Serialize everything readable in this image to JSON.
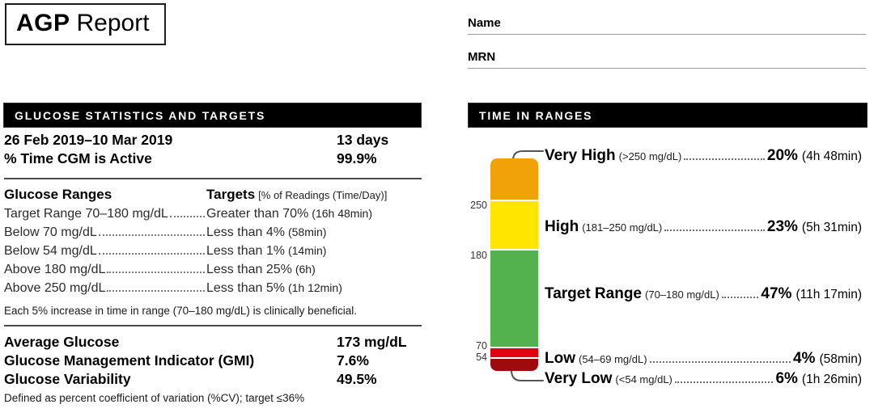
{
  "report": {
    "title_bold": "AGP",
    "title_regular": "Report"
  },
  "patient": {
    "name_label": "Name",
    "mrn_label": "MRN"
  },
  "stats_panel": {
    "header": "GLUCOSE STATISTICS AND TARGETS",
    "date_range": "26 Feb 2019–10 Mar 2019",
    "days_value": "13 days",
    "cgm_active_label": "% Time CGM is Active",
    "cgm_active_value": "99.9%",
    "ranges_col_header": "Glucose Ranges",
    "targets_col_header": "Targets",
    "targets_col_note": "[% of Readings (Time/Day)]",
    "rows": [
      {
        "range": "Target Range 70–180 mg/dL",
        "target": "Greater than 70%",
        "time": "(16h 48min)"
      },
      {
        "range": "Below 70 mg/dL",
        "target": "Less than 4%",
        "time": "(58min)"
      },
      {
        "range": "Below 54 mg/dL",
        "target": "Less than 1%",
        "time": "(14min)"
      },
      {
        "range": "Above 180 mg/dL",
        "target": "Less than 25%",
        "time": "(6h)"
      },
      {
        "range": "Above 250 mg/dL",
        "target": "Less than 5%",
        "time": "(1h 12min)"
      }
    ],
    "note": "Each 5% increase in time in range (70–180 mg/dL) is clinically beneficial.",
    "summary": [
      {
        "label": "Average Glucose",
        "value": "173 mg/dL"
      },
      {
        "label": "Glucose Management Indicator (GMI)",
        "value": "7.6%"
      },
      {
        "label": "Glucose Variability",
        "value": "49.5%"
      }
    ],
    "footnote": "Defined as percent coefficient of variation (%CV); target ≤36%"
  },
  "time_in_ranges": {
    "header": "TIME IN RANGES"
  },
  "chart_data": {
    "type": "bar",
    "subtype": "stacked-vertical-single-column",
    "title": "TIME IN RANGES",
    "axis_ticks": [
      "250",
      "180",
      "70",
      "54"
    ],
    "axis_unit": "mg/dL",
    "legend_position": "right",
    "segments": [
      {
        "name": "Very High",
        "range": "(>250 mg/dL)",
        "percent": 20,
        "percent_label": "20%",
        "time": "(4h 48min)",
        "color": "#F1A208"
      },
      {
        "name": "High",
        "range": "(181–250 mg/dL)",
        "percent": 23,
        "percent_label": "23%",
        "time": "(5h 31min)",
        "color": "#FFE600"
      },
      {
        "name": "Target Range",
        "range": "(70–180 mg/dL)",
        "percent": 47,
        "percent_label": "47%",
        "time": "(11h 17min)",
        "color": "#53B14E"
      },
      {
        "name": "Low",
        "range": "(54–69 mg/dL)",
        "percent": 4,
        "percent_label": "4%",
        "time": "(58min)",
        "color": "#E00310"
      },
      {
        "name": "Very Low",
        "range": "(<54 mg/dL)",
        "percent": 6,
        "percent_label": "6%",
        "time": "(1h 26min)",
        "color": "#9E0B0F"
      }
    ]
  }
}
